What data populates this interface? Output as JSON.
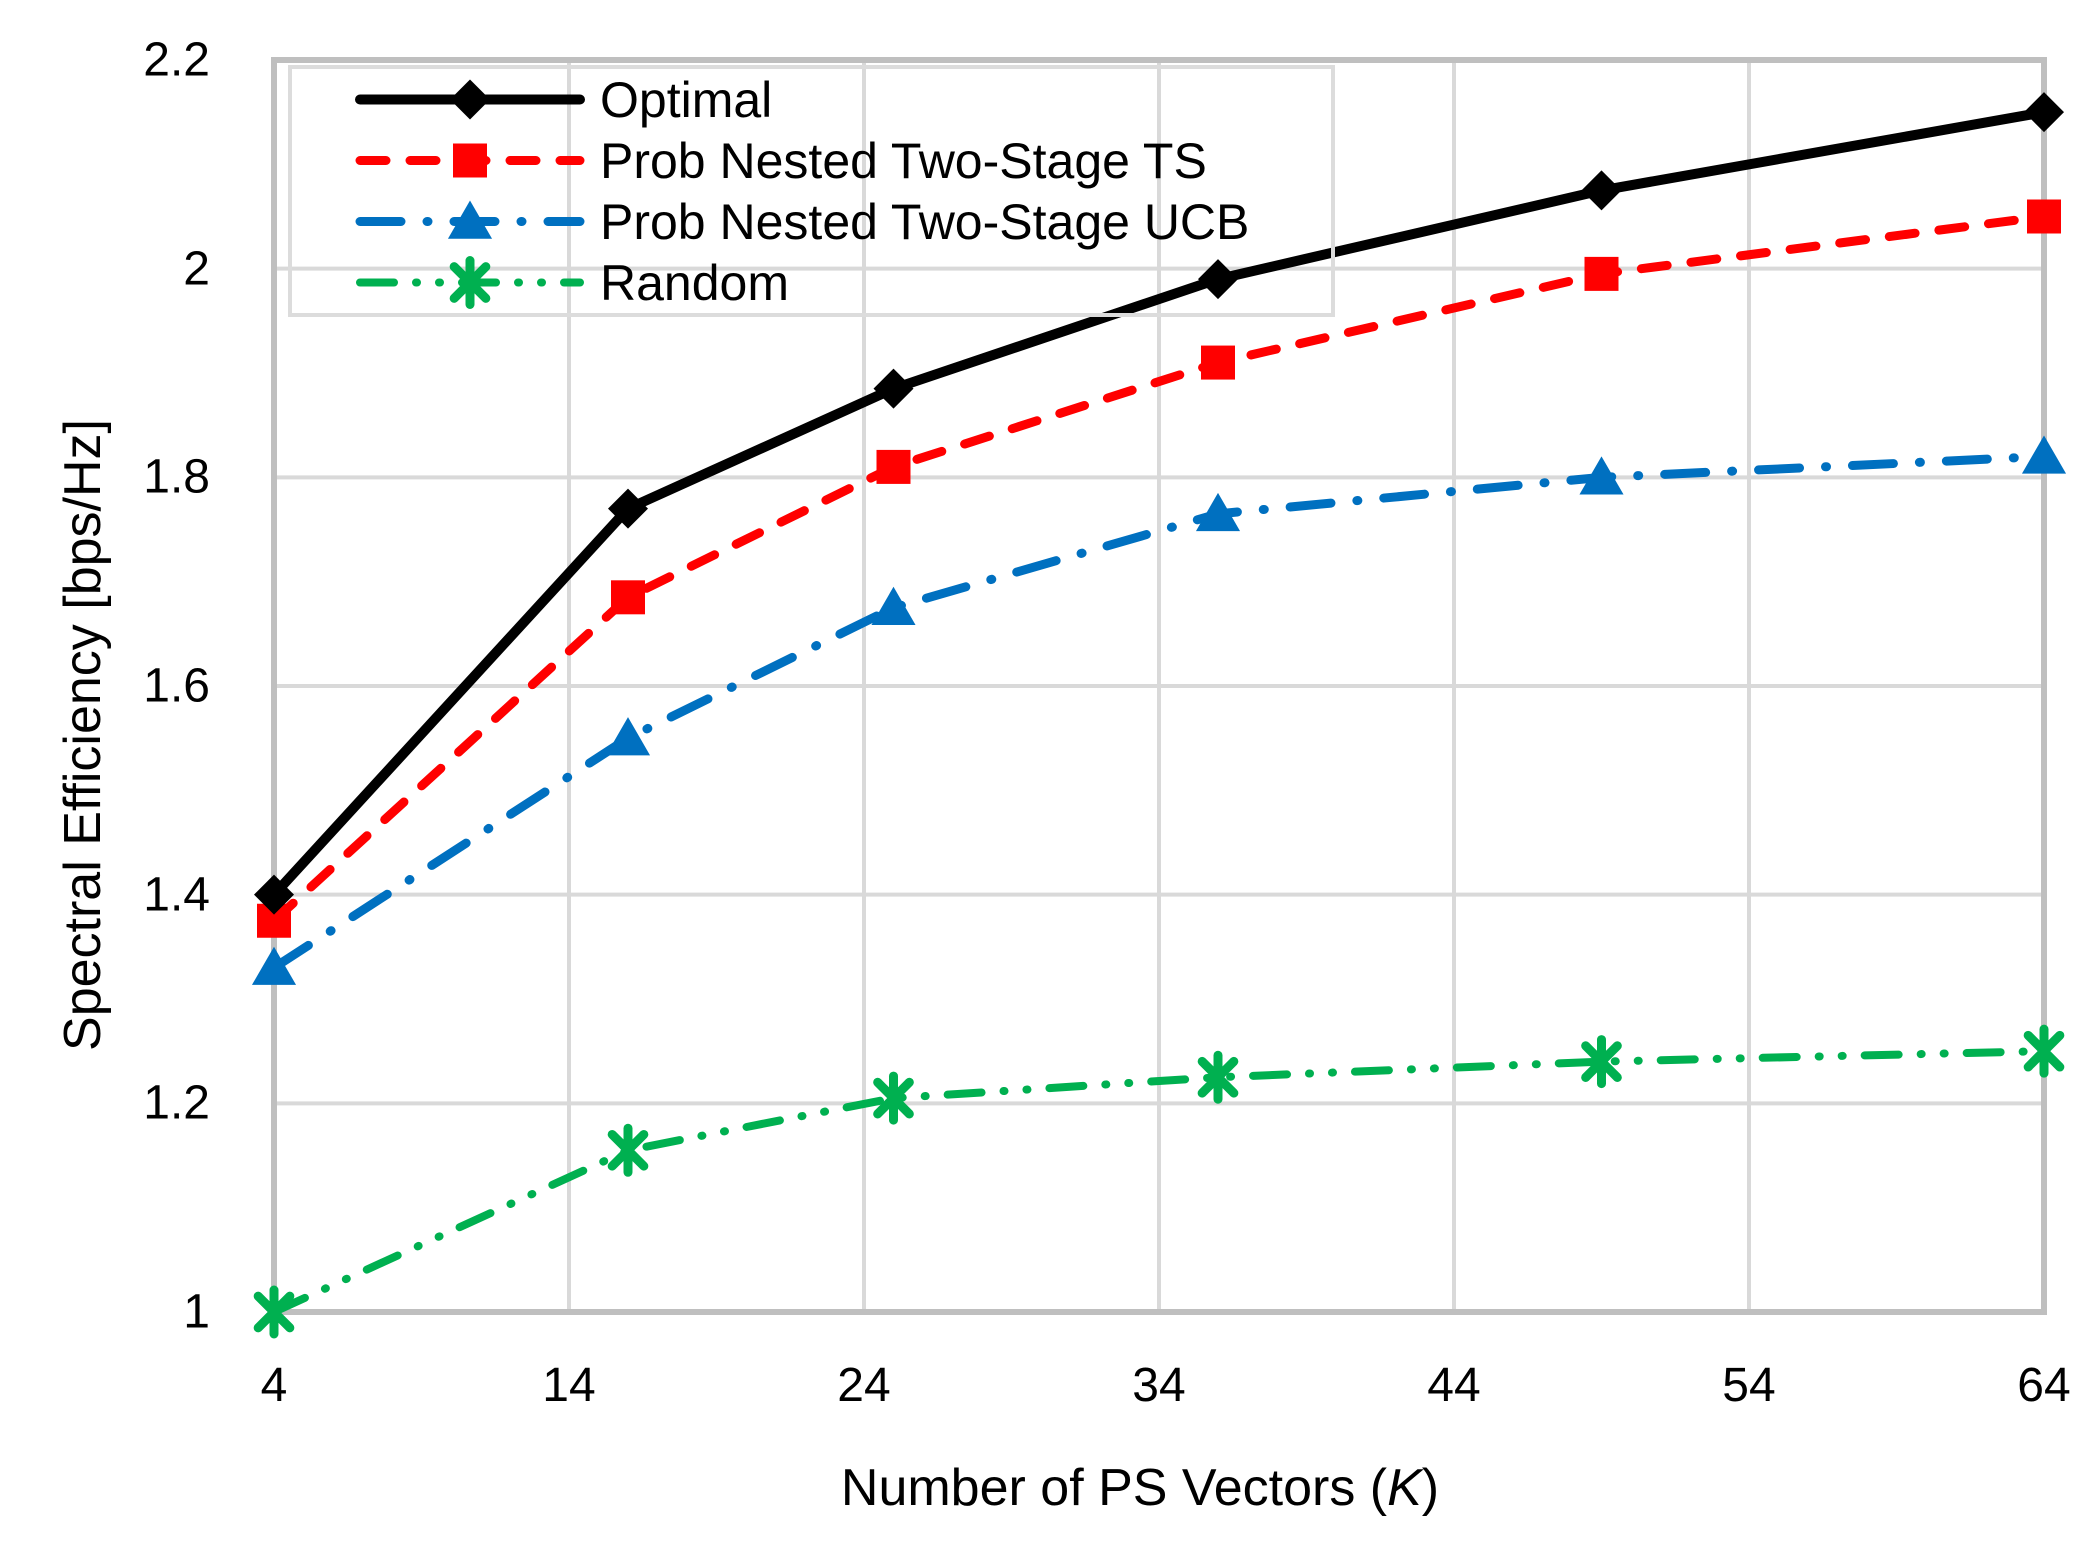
{
  "figure": {
    "x_title_prefix": "Number of PS Vectors (",
    "x_title_var": "K",
    "x_title_suffix": ")"
  },
  "chart_data": {
    "type": "line",
    "title": "",
    "xlabel": "Number of PS Vectors (K)",
    "ylabel": "Spectral Efficiency [bps/Hz]",
    "x": [
      4,
      16,
      25,
      36,
      49,
      64
    ],
    "series": [
      {
        "name": "Optimal",
        "color": "#000000",
        "dash": "solid",
        "marker": "diamond",
        "stroke_width": 10,
        "marker_size": 20,
        "values": [
          1.4,
          1.77,
          1.885,
          1.99,
          2.075,
          2.15
        ]
      },
      {
        "name": "Prob Nested Two-Stage TS",
        "color": "#FF0000",
        "dash": "dash",
        "marker": "square",
        "stroke_width": 9,
        "marker_size": 17,
        "values": [
          1.375,
          1.685,
          1.81,
          1.91,
          1.995,
          2.05
        ]
      },
      {
        "name": "Prob Nested Two-Stage UCB",
        "color": "#0070C0",
        "dash": "dash-dot",
        "marker": "triangle",
        "stroke_width": 9,
        "marker_size": 21,
        "values": [
          1.33,
          1.55,
          1.675,
          1.765,
          1.8,
          1.82
        ]
      },
      {
        "name": "Random",
        "color": "#00B050",
        "dash": "dash-dot-dot",
        "marker": "asterisk",
        "stroke_width": 8,
        "marker_size": 22,
        "values": [
          1.0,
          1.155,
          1.205,
          1.225,
          1.24,
          1.25
        ]
      }
    ],
    "x_ticks": [
      4,
      14,
      24,
      34,
      44,
      54,
      64
    ],
    "y_ticks": [
      "1",
      "1.2",
      "1.4",
      "1.6",
      "1.8",
      "2",
      "2.2"
    ],
    "xlim": [
      4,
      64
    ],
    "ylim": [
      1,
      2.2
    ],
    "grid": true,
    "legend_position": "top-left"
  },
  "style": {
    "background": "#FFFFFF",
    "grid_color": "#D9D9D9",
    "axis_border_color": "#BFBFBF",
    "text_color": "#000000"
  }
}
